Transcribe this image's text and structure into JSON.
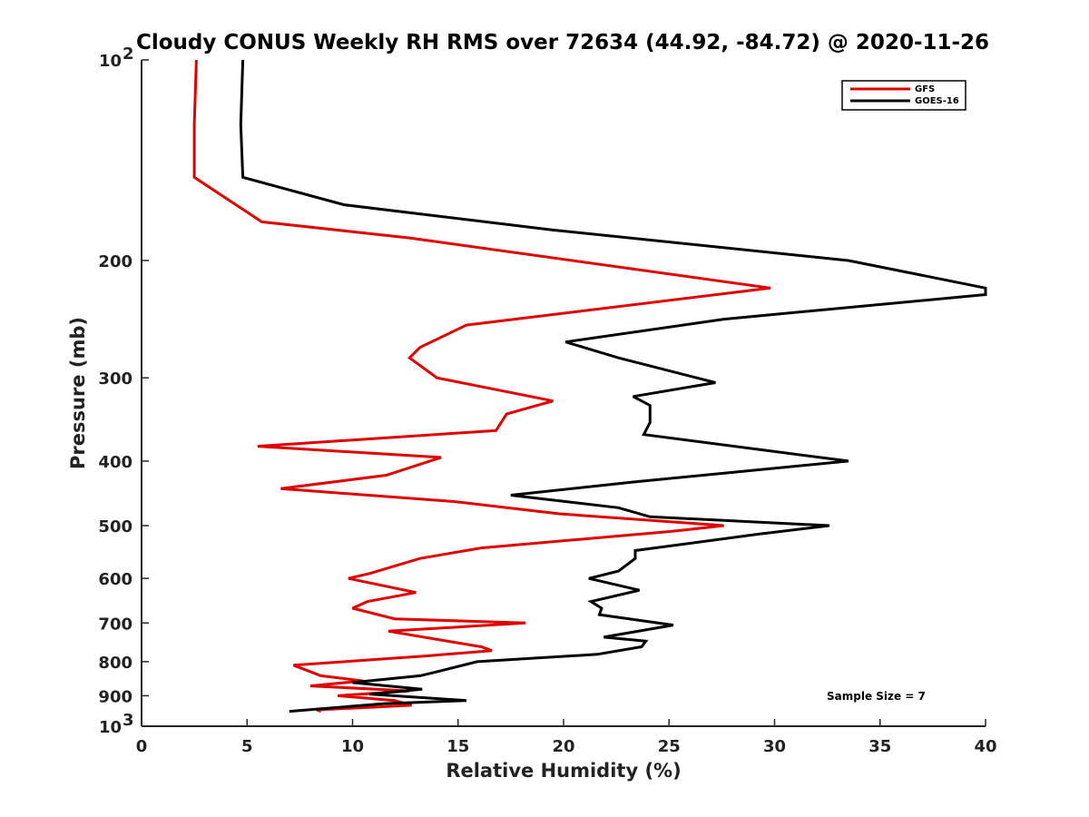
{
  "chart_data": {
    "type": "line",
    "title": "Cloudy CONUS Weekly RH RMS over 72634 (44.92, -84.72) @ 2020-11-26",
    "xlabel": "Relative Humidity (%)",
    "ylabel": "Pressure (mb)",
    "xlim": [
      0,
      40
    ],
    "ylim": [
      100,
      1000
    ],
    "y_scale": "log",
    "y_reversed": true,
    "grid": false,
    "legend_position": "top-right",
    "x_ticks": [
      "0",
      "5",
      "10",
      "15",
      "20",
      "25",
      "30",
      "35",
      "40"
    ],
    "y_ticks": [
      {
        "value": 100,
        "base": "10",
        "exp": "2"
      },
      {
        "value": 200,
        "label": "200"
      },
      {
        "value": 300,
        "label": "300"
      },
      {
        "value": 400,
        "label": "400"
      },
      {
        "value": 500,
        "label": "500"
      },
      {
        "value": 600,
        "label": "600"
      },
      {
        "value": 700,
        "label": "700"
      },
      {
        "value": 800,
        "label": "800"
      },
      {
        "value": 900,
        "label": "900"
      },
      {
        "value": 1000,
        "base": "10",
        "exp": "3"
      }
    ],
    "annotation": "Sample Size = 7",
    "series": [
      {
        "name": "GFS",
        "color": "#e00000",
        "points": [
          [
            2.6,
            100
          ],
          [
            2.5,
            125
          ],
          [
            2.5,
            150
          ],
          [
            5.7,
            175
          ],
          [
            12.7,
            185
          ],
          [
            29.8,
            220
          ],
          [
            15.4,
            250
          ],
          [
            13.2,
            270
          ],
          [
            12.7,
            280
          ],
          [
            14.0,
            300
          ],
          [
            19.5,
            325
          ],
          [
            17.3,
            340
          ],
          [
            16.8,
            360
          ],
          [
            5.5,
            380
          ],
          [
            14.2,
            395
          ],
          [
            11.6,
            420
          ],
          [
            6.6,
            440
          ],
          [
            14.8,
            460
          ],
          [
            19.8,
            480
          ],
          [
            27.6,
            500
          ],
          [
            25.1,
            510
          ],
          [
            16.1,
            540
          ],
          [
            13.2,
            560
          ],
          [
            10.8,
            590
          ],
          [
            9.8,
            600
          ],
          [
            13.0,
            630
          ],
          [
            10.7,
            650
          ],
          [
            10.0,
            665
          ],
          [
            12.0,
            690
          ],
          [
            18.2,
            700
          ],
          [
            11.7,
            720
          ],
          [
            16.1,
            760
          ],
          [
            16.6,
            770
          ],
          [
            13.4,
            785
          ],
          [
            7.2,
            810
          ],
          [
            8.5,
            840
          ],
          [
            10.5,
            855
          ],
          [
            8.0,
            870
          ],
          [
            12.7,
            885
          ],
          [
            9.3,
            900
          ],
          [
            12.0,
            915
          ],
          [
            12.8,
            930
          ],
          [
            8.3,
            945
          ],
          [
            8.5,
            950
          ]
        ]
      },
      {
        "name": "GOES-16",
        "color": "#000000",
        "points": [
          [
            4.8,
            100
          ],
          [
            4.7,
            125
          ],
          [
            4.8,
            150
          ],
          [
            9.6,
            165
          ],
          [
            19.5,
            180
          ],
          [
            33.5,
            200
          ],
          [
            40.0,
            220
          ],
          [
            40.0,
            225
          ],
          [
            27.6,
            245
          ],
          [
            20.1,
            265
          ],
          [
            22.6,
            280
          ],
          [
            27.2,
            305
          ],
          [
            23.3,
            320
          ],
          [
            24.1,
            330
          ],
          [
            24.1,
            350
          ],
          [
            23.8,
            365
          ],
          [
            33.5,
            400
          ],
          [
            23.3,
            430
          ],
          [
            17.5,
            450
          ],
          [
            22.6,
            470
          ],
          [
            24.1,
            485
          ],
          [
            32.6,
            500
          ],
          [
            29.2,
            515
          ],
          [
            23.4,
            545
          ],
          [
            23.4,
            560
          ],
          [
            22.6,
            585
          ],
          [
            21.2,
            600
          ],
          [
            23.6,
            625
          ],
          [
            21.3,
            650
          ],
          [
            21.8,
            665
          ],
          [
            21.7,
            680
          ],
          [
            25.2,
            705
          ],
          [
            21.9,
            735
          ],
          [
            23.9,
            745
          ],
          [
            23.7,
            760
          ],
          [
            21.6,
            780
          ],
          [
            15.9,
            800
          ],
          [
            13.9,
            830
          ],
          [
            13.2,
            840
          ],
          [
            10.0,
            860
          ],
          [
            13.3,
            880
          ],
          [
            10.8,
            895
          ],
          [
            15.4,
            915
          ],
          [
            11.5,
            925
          ],
          [
            7.0,
            950
          ]
        ]
      }
    ]
  }
}
